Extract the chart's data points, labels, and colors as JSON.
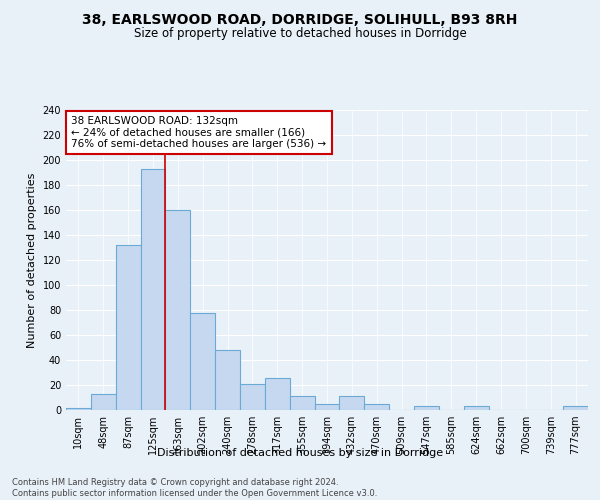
{
  "title1": "38, EARLSWOOD ROAD, DORRIDGE, SOLIHULL, B93 8RH",
  "title2": "Size of property relative to detached houses in Dorridge",
  "xlabel": "Distribution of detached houses by size in Dorridge",
  "ylabel": "Number of detached properties",
  "categories": [
    "10sqm",
    "48sqm",
    "87sqm",
    "125sqm",
    "163sqm",
    "202sqm",
    "240sqm",
    "278sqm",
    "317sqm",
    "355sqm",
    "394sqm",
    "432sqm",
    "470sqm",
    "509sqm",
    "547sqm",
    "585sqm",
    "624sqm",
    "662sqm",
    "700sqm",
    "739sqm",
    "777sqm"
  ],
  "values": [
    2,
    13,
    132,
    193,
    160,
    78,
    48,
    21,
    26,
    11,
    5,
    11,
    5,
    0,
    3,
    0,
    3,
    0,
    0,
    0,
    3
  ],
  "bar_color": "#c5d8f0",
  "bar_edge_color": "#6aaad4",
  "bar_linewidth": 0.8,
  "vline_x": 3.5,
  "vline_color": "#cc0000",
  "annotation_line1": "38 EARLSWOOD ROAD: 132sqm",
  "annotation_line2": "← 24% of detached houses are smaller (166)",
  "annotation_line3": "76% of semi-detached houses are larger (536) →",
  "annotation_box_color": "white",
  "annotation_box_edgecolor": "#cc0000",
  "footer_text": "Contains HM Land Registry data © Crown copyright and database right 2024.\nContains public sector information licensed under the Open Government Licence v3.0.",
  "ylim": [
    0,
    240
  ],
  "yticks": [
    0,
    20,
    40,
    60,
    80,
    100,
    120,
    140,
    160,
    180,
    200,
    220,
    240
  ],
  "bg_color": "#e8f0f8",
  "plot_bg_color": "#e8f0f8",
  "title1_fontsize": 10,
  "title2_fontsize": 8.5,
  "tick_fontsize": 7,
  "ylabel_fontsize": 8,
  "xlabel_fontsize": 8,
  "annotation_fontsize": 7.5,
  "footer_fontsize": 6,
  "footer_color": "#444444"
}
